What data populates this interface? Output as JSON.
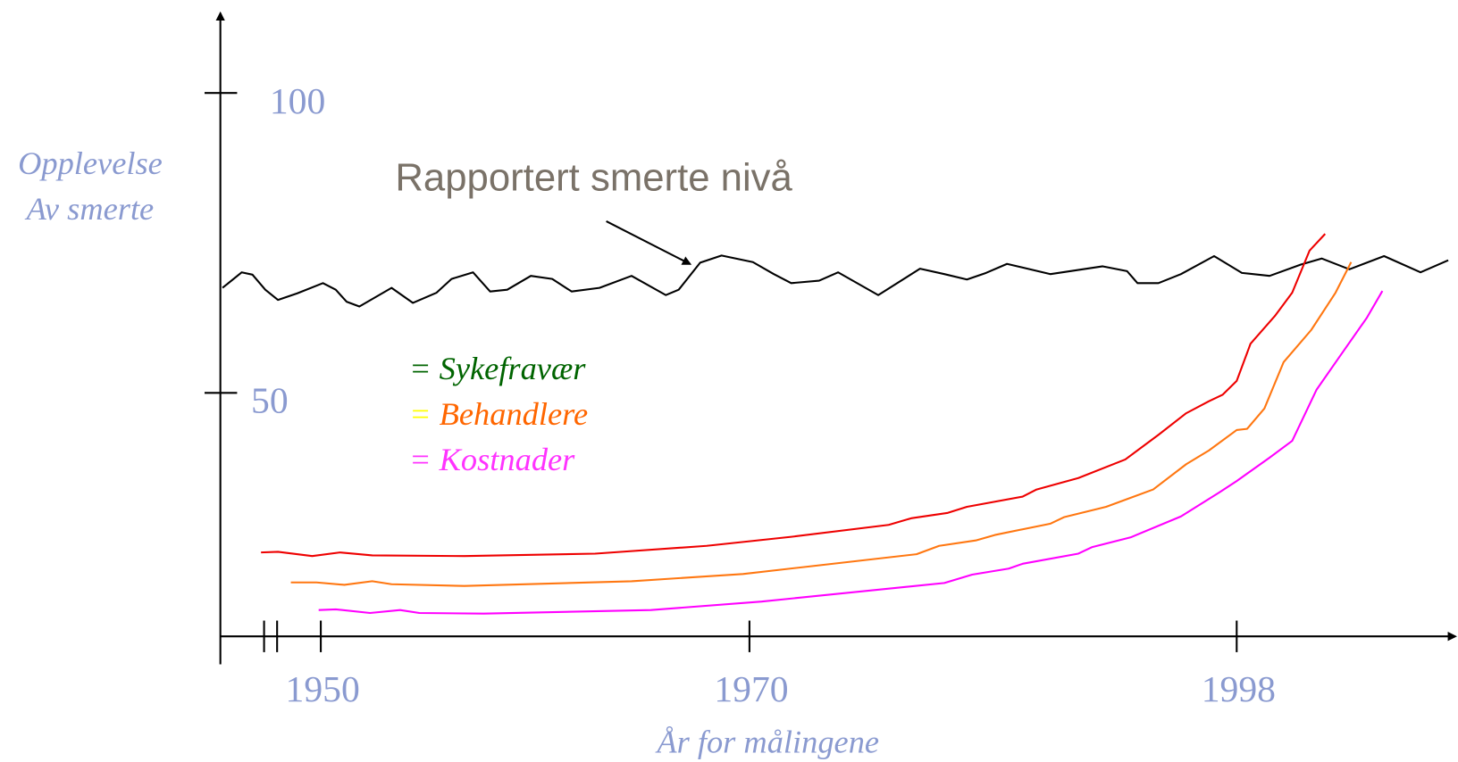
{
  "chart_data": {
    "type": "line",
    "annotation": "Rapportert smerte nivå",
    "ylabel": [
      "Opplevelse",
      "Av smerte"
    ],
    "xlabel": "År for målingene",
    "xlim": [
      1945.3,
      2010.6
    ],
    "xticks": [
      1950,
      1970,
      1998
    ],
    "ylim": [
      9.4,
      113.6
    ],
    "yticks": [
      100,
      50
    ],
    "legend": [
      {
        "marker": "=",
        "marker_color": "#006400",
        "label": "Sykefravær",
        "color": "#006400"
      },
      {
        "marker": "=",
        "marker_color": "#ffff00",
        "label": "Behandlere",
        "color": "#ff6600"
      },
      {
        "marker": "=",
        "marker_color": "#ff33ff",
        "label": "Kostnader",
        "color": "#ff33ff"
      }
    ],
    "series": [
      {
        "color": "#000000",
        "x": [
          1945.4,
          1946.3,
          1946.8,
          1947.4,
          1948.0,
          1948.9,
          1950.1,
          1950.7,
          1951.2,
          1951.8,
          1953.3,
          1954.3,
          1955.4,
          1956.1,
          1957.1,
          1957.9,
          1958.7,
          1959.8,
          1960.8,
          1961.7,
          1963.0,
          1964.5,
          1966.1,
          1966.7,
          1967.7,
          1968.7,
          1970.2,
          1971.4,
          1972.4,
          1974.0,
          1975.1,
          1977.4,
          1979.8,
          1981.2,
          1982.5,
          1983.6,
          1984.8,
          1987.3,
          1990.3,
          1991.7,
          1992.3,
          1993.5,
          1994.8,
          1996.7,
          1998.3,
          1999.9,
          2001.7,
          2002.9,
          2004.5,
          2006.5,
          2008.6,
          2010.2
        ],
        "values": [
          67.5,
          70.1,
          69.7,
          67.2,
          65.5,
          66.6,
          68.3,
          67.2,
          65.2,
          64.4,
          67.5,
          65.0,
          66.7,
          69.0,
          70.1,
          66.9,
          67.2,
          69.5,
          69.0,
          66.9,
          67.5,
          69.5,
          66.3,
          67.2,
          71.7,
          72.9,
          71.8,
          69.8,
          68.3,
          68.7,
          70.1,
          66.3,
          70.7,
          69.8,
          68.9,
          70.0,
          71.5,
          69.8,
          71.1,
          70.3,
          68.3,
          68.3,
          69.8,
          72.8,
          70.0,
          69.5,
          71.4,
          72.4,
          70.6,
          72.8,
          70.1,
          72.1
        ]
      },
      {
        "color": "#ee0000",
        "x": [
          1947.2,
          1948.0,
          1949.6,
          1950.9,
          1952.4,
          1956.7,
          1962.8,
          1968.0,
          1972.4,
          1978.0,
          1979.3,
          1981.4,
          1982.5,
          1985.7,
          1986.5,
          1988.9,
          1991.6,
          1993.5,
          1995.1,
          1996.4,
          1997.2,
          1998.0,
          1998.8,
          2000.2,
          2001.2,
          2002.2,
          2003.1
        ],
        "values": [
          23.4,
          23.5,
          22.8,
          23.4,
          22.9,
          22.8,
          23.2,
          24.5,
          26.0,
          28.0,
          29.1,
          30.0,
          31.0,
          32.7,
          33.9,
          35.8,
          38.9,
          43.0,
          46.6,
          48.6,
          49.7,
          52.0,
          58.2,
          62.8,
          66.7,
          73.7,
          76.5
        ]
      },
      {
        "color": "#ff7711",
        "x": [
          1948.6,
          1949.8,
          1951.1,
          1952.4,
          1953.3,
          1956.7,
          1964.5,
          1969.7,
          1979.6,
          1980.9,
          1983.0,
          1984.1,
          1987.3,
          1988.1,
          1990.5,
          1993.2,
          1995.1,
          1996.4,
          1998.0,
          1998.6,
          1999.6,
          2000.7,
          2002.3,
          2003.7,
          2004.6
        ],
        "values": [
          18.4,
          18.4,
          18.0,
          18.6,
          18.1,
          17.8,
          18.6,
          19.8,
          23.1,
          24.5,
          25.4,
          26.3,
          28.2,
          29.3,
          31.0,
          33.9,
          38.1,
          40.4,
          43.8,
          44.0,
          47.4,
          55.1,
          60.5,
          66.7,
          71.8
        ]
      },
      {
        "color": "#ff00ff",
        "x": [
          1949.9,
          1950.7,
          1952.3,
          1953.7,
          1954.6,
          1957.6,
          1965.4,
          1970.7,
          1981.2,
          1982.8,
          1984.9,
          1985.7,
          1988.9,
          1989.7,
          1991.9,
          1994.8,
          1997.0,
          1998.0,
          1999.9,
          2001.2,
          2002.6,
          2003.9,
          2005.5,
          2006.4
        ],
        "values": [
          13.8,
          13.9,
          13.3,
          13.8,
          13.3,
          13.2,
          13.8,
          15.2,
          18.3,
          19.7,
          20.7,
          21.5,
          23.2,
          24.3,
          25.9,
          29.4,
          33.4,
          35.3,
          39.2,
          42.0,
          50.5,
          55.9,
          62.5,
          67.0
        ]
      }
    ]
  }
}
